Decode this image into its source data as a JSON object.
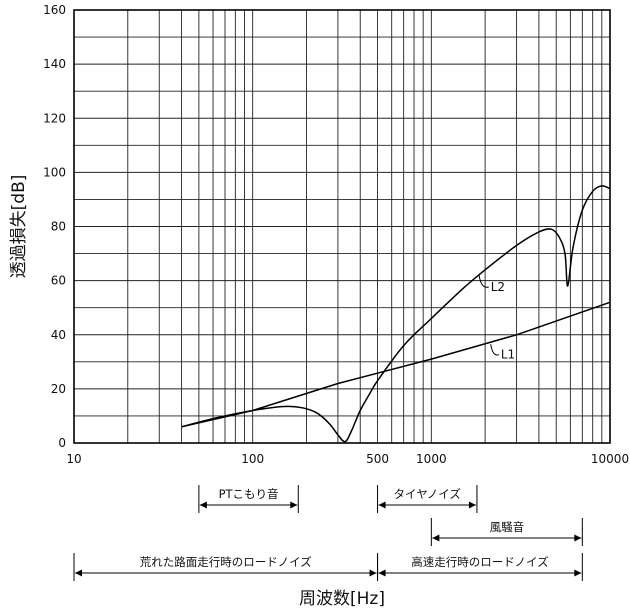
{
  "chart_data": {
    "type": "line",
    "xlabel": "周波数[Hz]",
    "ylabel": "透過損失[dB]",
    "xscale": "log",
    "xlim": [
      10,
      10000
    ],
    "ylim": [
      0,
      160
    ],
    "x_ticks": [
      {
        "value": 10,
        "label": "10"
      },
      {
        "value": 100,
        "label": "100"
      },
      {
        "value": 500,
        "label": "500"
      },
      {
        "value": 1000,
        "label": "1000"
      },
      {
        "value": 10000,
        "label": "10000"
      }
    ],
    "y_ticks": [
      0,
      20,
      40,
      60,
      80,
      100,
      120,
      140,
      160
    ],
    "grid": true,
    "series": [
      {
        "name": "L1",
        "x": [
          40,
          100,
          300,
          1000,
          3000,
          10000
        ],
        "y": [
          6,
          12,
          22,
          31,
          40,
          52
        ]
      },
      {
        "name": "L2",
        "x": [
          40,
          60,
          100,
          150,
          190,
          230,
          270,
          300,
          330,
          360,
          400,
          450,
          500,
          700,
          1000,
          1500,
          2000,
          3000,
          4000,
          4700,
          5200,
          5600,
          5800,
          6200,
          7000,
          8000,
          9000,
          10000
        ],
        "y": [
          6,
          9,
          12,
          13.5,
          13,
          11,
          7,
          3,
          0.5,
          5,
          12,
          18,
          23,
          36,
          46,
          57,
          64,
          73,
          78,
          79,
          76,
          70,
          58,
          72,
          86,
          93,
          95,
          94
        ]
      }
    ],
    "annotations": [
      {
        "label": "PTこもり音",
        "x_from": 50,
        "x_to": 180,
        "row": 1
      },
      {
        "label": "タイヤノイズ",
        "x_from": 500,
        "x_to": 1800,
        "row": 1
      },
      {
        "label": "風騒音",
        "x_from": 1000,
        "x_to": 7000,
        "row": 2
      },
      {
        "label": "荒れた路面走行時のロードノイズ",
        "x_from": 10,
        "x_to": 500,
        "row": 3
      },
      {
        "label": "高速走行時のロードノイズ",
        "x_from": 500,
        "x_to": 7000,
        "row": 3
      }
    ]
  }
}
